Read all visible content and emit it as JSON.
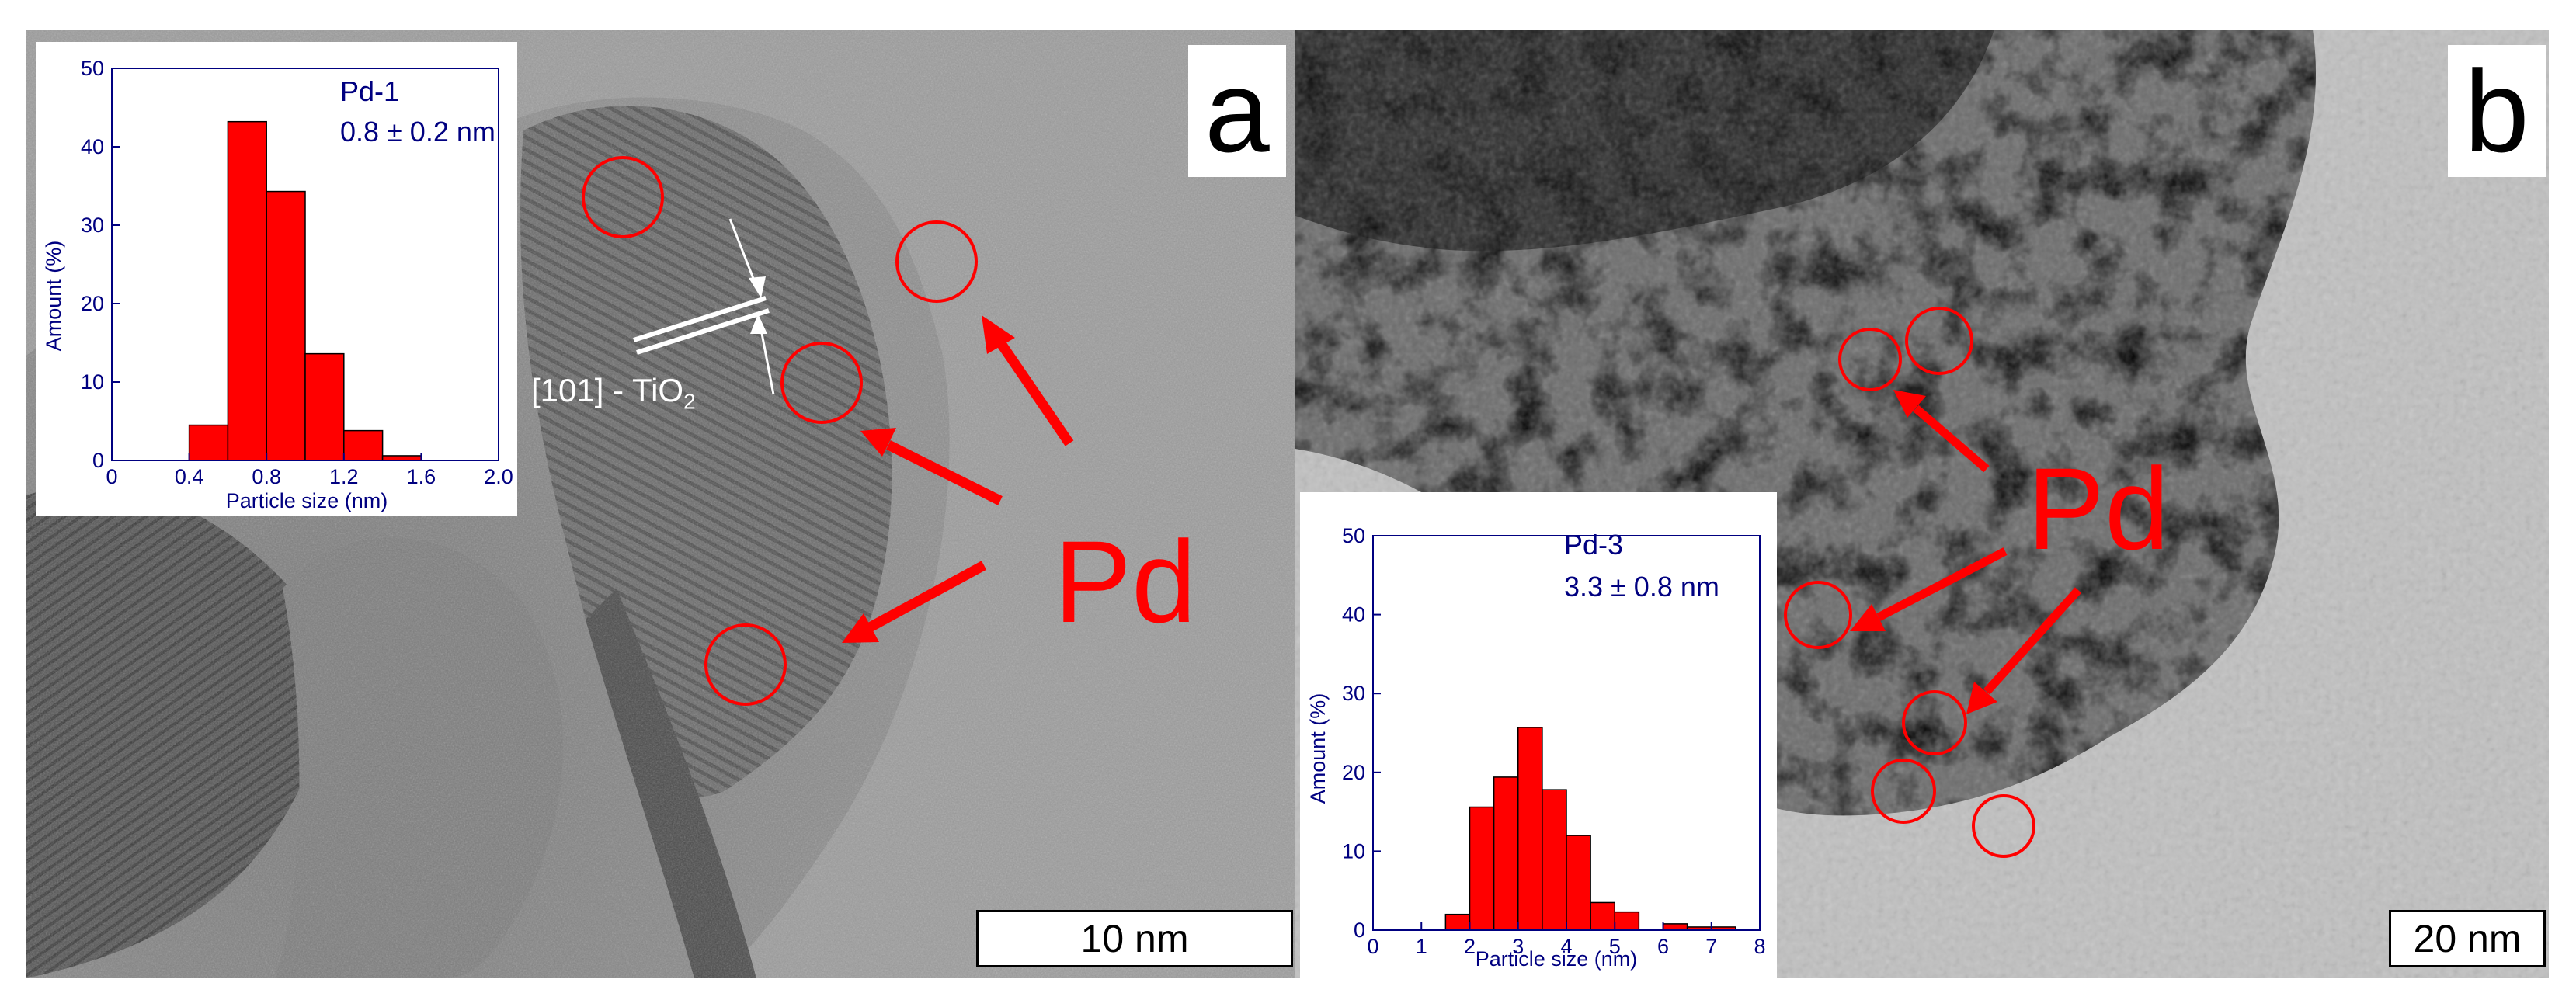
{
  "panel_a": {
    "letter": "a",
    "scale_bar": "10 nm",
    "lattice_label": "[101] - TiO",
    "lattice_sub": "2",
    "pd_label": "Pd",
    "inset": {
      "series_label": "Pd-1",
      "size_text": "0.8 ± 0.2 nm",
      "xlabel": "Particle size (nm)",
      "ylabel": "Amount (%)",
      "x_ticks": [
        "0",
        "0.4",
        "0.8",
        "1.2",
        "1.6",
        "2.0"
      ],
      "y_ticks": [
        "0",
        "10",
        "20",
        "30",
        "40",
        "50"
      ]
    }
  },
  "panel_b": {
    "letter": "b",
    "scale_bar": "20 nm",
    "pd_label": "Pd",
    "inset": {
      "series_label": "Pd-3",
      "size_text": "3.3 ± 0.8 nm",
      "xlabel": "Particle size (nm)",
      "ylabel": "Amount (%)",
      "x_ticks": [
        "0",
        "1",
        "2",
        "3",
        "4",
        "5",
        "6",
        "7",
        "8"
      ],
      "y_ticks": [
        "0",
        "10",
        "20",
        "30",
        "40",
        "50"
      ]
    }
  },
  "colors": {
    "bar": "#ff0000",
    "axis": "#000080",
    "marker": "#ff0000"
  },
  "chart_data": [
    {
      "type": "bar",
      "title": "Pd-1",
      "xlabel": "Particle size (nm)",
      "ylabel": "Amount (%)",
      "xlim": [
        0,
        2.0
      ],
      "ylim": [
        0,
        50
      ],
      "bin_width": 0.2,
      "x": [
        0.5,
        0.7,
        0.9,
        1.1,
        1.3,
        1.5
      ],
      "values": [
        4.5,
        43.2,
        34.3,
        13.6,
        3.8,
        0.6
      ]
    },
    {
      "type": "bar",
      "title": "Pd-3",
      "xlabel": "Particle size (nm)",
      "ylabel": "Amount (%)",
      "xlim": [
        0,
        8
      ],
      "ylim": [
        0,
        50
      ],
      "bin_width": 0.5,
      "x": [
        1.75,
        2.25,
        2.75,
        3.25,
        3.75,
        4.25,
        4.75,
        5.25,
        5.75,
        6.25,
        6.75,
        7.25
      ],
      "values": [
        2.0,
        15.6,
        19.4,
        25.7,
        17.8,
        12.0,
        3.5,
        2.3,
        0.0,
        0.8,
        0.4,
        0.4
      ]
    }
  ]
}
